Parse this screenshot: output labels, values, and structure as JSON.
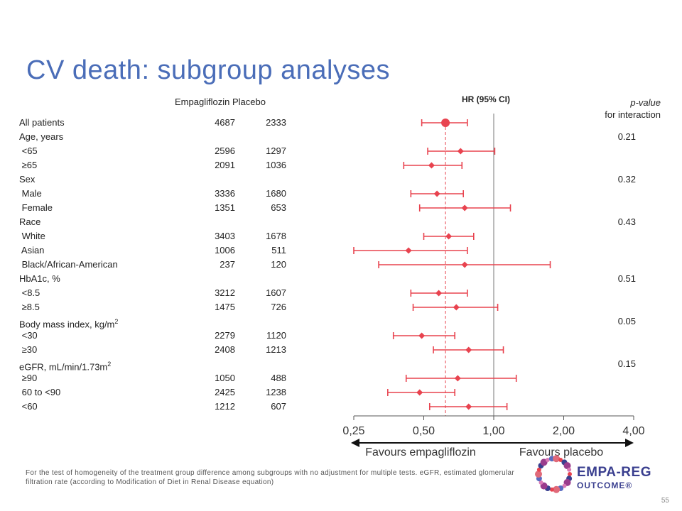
{
  "title": "CV death: subgroup analyses",
  "headers": {
    "empagliflozin": "Empagliflozin",
    "placebo": "Placebo",
    "hr": "HR (95% CI)",
    "pvalue_line1": "p-value",
    "pvalue_line2": "for interaction"
  },
  "rows": [
    {
      "label": "All patients",
      "emp": "4687",
      "pla": "2333",
      "p": ""
    },
    {
      "label": "Age, years",
      "emp": "",
      "pla": "",
      "p": "0.21"
    },
    {
      "label": " <65",
      "emp": "2596",
      "pla": "1297",
      "p": ""
    },
    {
      "label": " ≥65",
      "emp": "2091",
      "pla": "1036",
      "p": ""
    },
    {
      "label": "Sex",
      "emp": "",
      "pla": "",
      "p": "0.32"
    },
    {
      "label": " Male",
      "emp": "3336",
      "pla": "1680",
      "p": ""
    },
    {
      "label": " Female",
      "emp": "1351",
      "pla": "653",
      "p": ""
    },
    {
      "label": "Race",
      "emp": "",
      "pla": "",
      "p": "0.43"
    },
    {
      "label": " White",
      "emp": "3403",
      "pla": "1678",
      "p": ""
    },
    {
      "label": " Asian",
      "emp": "1006",
      "pla": "511",
      "p": ""
    },
    {
      "label": " Black/African-American",
      "emp": "237",
      "pla": "120",
      "p": ""
    },
    {
      "label": "HbA1c, %",
      "emp": "",
      "pla": "",
      "p": "0.51"
    },
    {
      "label": " <8.5",
      "emp": "3212",
      "pla": "1607",
      "p": ""
    },
    {
      "label": " ≥8.5",
      "emp": "1475",
      "pla": "726",
      "p": ""
    },
    {
      "label": "Body mass index, kg/m",
      "sup": "2",
      "emp": "",
      "pla": "",
      "p": "0.05"
    },
    {
      "label": " <30",
      "emp": "2279",
      "pla": "1120",
      "p": ""
    },
    {
      "label": " ≥30",
      "emp": "2408",
      "pla": "1213",
      "p": ""
    },
    {
      "label": "eGFR, mL/min/1.73m",
      "sup": "2",
      "emp": "",
      "pla": "",
      "p": "0.15"
    },
    {
      "label": " ≥90",
      "emp": "1050",
      "pla": "488",
      "p": ""
    },
    {
      "label": " 60 to <90",
      "emp": "2425",
      "pla": "1238",
      "p": ""
    },
    {
      "label": " <60",
      "emp": "1212",
      "pla": "607",
      "p": ""
    }
  ],
  "chart_data": {
    "type": "forest",
    "x_scale": "log",
    "xlim": [
      0.25,
      4.0
    ],
    "x_ticks": [
      "0,25",
      "0,50",
      "1,00",
      "2,00",
      "4,00"
    ],
    "x_tick_values": [
      0.25,
      0.5,
      1.0,
      2.0,
      4.0
    ],
    "reference_line": 1.0,
    "overall_line": 0.62,
    "favours_left": "Favours empagliflozin",
    "favours_right": "Favours placebo",
    "point_color": "#e8434f",
    "series": [
      {
        "row": 0,
        "hr": 0.62,
        "lo": 0.49,
        "hi": 0.77,
        "overall": true
      },
      {
        "row": 2,
        "hr": 0.72,
        "lo": 0.52,
        "hi": 1.01
      },
      {
        "row": 3,
        "hr": 0.54,
        "lo": 0.41,
        "hi": 0.73
      },
      {
        "row": 5,
        "hr": 0.57,
        "lo": 0.44,
        "hi": 0.74
      },
      {
        "row": 6,
        "hr": 0.75,
        "lo": 0.48,
        "hi": 1.18
      },
      {
        "row": 8,
        "hr": 0.64,
        "lo": 0.5,
        "hi": 0.82
      },
      {
        "row": 9,
        "hr": 0.43,
        "lo": 0.25,
        "hi": 0.77
      },
      {
        "row": 10,
        "hr": 0.75,
        "lo": 0.32,
        "hi": 1.75
      },
      {
        "row": 12,
        "hr": 0.58,
        "lo": 0.44,
        "hi": 0.77
      },
      {
        "row": 13,
        "hr": 0.69,
        "lo": 0.45,
        "hi": 1.04
      },
      {
        "row": 15,
        "hr": 0.49,
        "lo": 0.37,
        "hi": 0.68
      },
      {
        "row": 16,
        "hr": 0.78,
        "lo": 0.55,
        "hi": 1.1
      },
      {
        "row": 18,
        "hr": 0.7,
        "lo": 0.42,
        "hi": 1.25
      },
      {
        "row": 19,
        "hr": 0.48,
        "lo": 0.35,
        "hi": 0.68
      },
      {
        "row": 20,
        "hr": 0.78,
        "lo": 0.53,
        "hi": 1.14
      }
    ]
  },
  "footnote": "For the test of homogeneity of the treatment group difference among subgroups with no adjustment for multiple tests. eGFR, estimated glomerular filtration rate (according to Modification of Diet in Renal Disease equation)",
  "page_number": "55",
  "logo": {
    "line1": "EMPA-REG",
    "line2": "OUTCOME®"
  }
}
